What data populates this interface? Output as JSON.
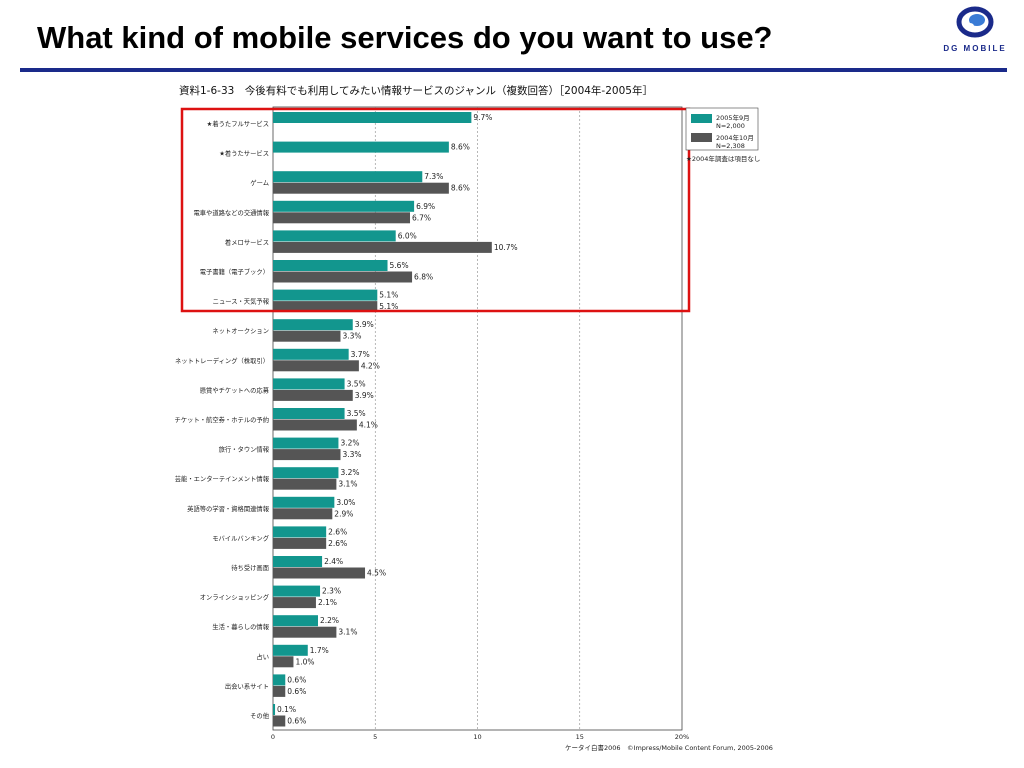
{
  "slide": {
    "title": "What kind of mobile services do you want to use?",
    "logo_text": "DG MOBILE"
  },
  "colors": {
    "series_2005": "#12968e",
    "series_2004": "#555555",
    "highlight_box": "#dd1111",
    "divider": "#1a2a8a"
  },
  "chart_data": {
    "type": "bar",
    "orientation": "horizontal",
    "title": "資料1-6-33　今後有料でも利用してみたい情報サービスのジャンル（複数回答）［2004年-2005年］",
    "categories": [
      "★着うたフルサービス",
      "★着うたサービス",
      "ゲーム",
      "電車や道路などの交通情報",
      "着メロサービス",
      "電子書籍（電子ブック）",
      "ニュース・天気予報",
      "ネットオークション",
      "ネットトレーディング（株取引）",
      "懸賞やチケットへの応募",
      "チケット・航空券・ホテルの予約",
      "旅行・タウン情報",
      "芸能・エンターテインメント情報",
      "英語等の学習・資格関連情報",
      "モバイルバンキング",
      "待ち受け画面",
      "オンラインショッピング",
      "生活・暮らしの情報",
      "占い",
      "出会い系サイト",
      "その他"
    ],
    "series": [
      {
        "name": "2005年9月 N=2,000",
        "values": [
          9.7,
          8.6,
          7.3,
          6.9,
          6.0,
          5.6,
          5.1,
          3.9,
          3.7,
          3.5,
          3.5,
          3.2,
          3.2,
          3.0,
          2.6,
          2.4,
          2.3,
          2.2,
          1.7,
          0.6,
          0.1
        ],
        "labels": [
          "9.7%",
          "8.6%",
          "7.3%",
          "6.9%",
          "6.0%",
          "5.6%",
          "5.1%",
          "3.9%",
          "3.7%",
          "3.5%",
          "3.5%",
          "3.2%",
          "3.2%",
          "3.0%",
          "2.6%",
          "2.4%",
          "2.3%",
          "2.2%",
          "1.7%",
          "0.6%",
          "0.1%"
        ]
      },
      {
        "name": "2004年10月 N=2,308",
        "values": [
          null,
          null,
          8.6,
          6.7,
          10.7,
          6.8,
          5.1,
          3.3,
          4.2,
          3.9,
          4.1,
          3.3,
          3.1,
          2.9,
          2.6,
          4.5,
          2.1,
          3.1,
          1.0,
          0.6,
          0.6
        ],
        "labels": [
          "",
          "",
          "8.6%",
          "6.7%",
          "10.7%",
          "6.8%",
          "5.1%",
          "3.3%",
          "4.2%",
          "3.9%",
          "4.1%",
          "3.3%",
          "3.1%",
          "2.9%",
          "2.6%",
          "4.5%",
          "2.1%",
          "3.1%",
          "1.0%",
          "0.6%",
          "0.6%"
        ]
      }
    ],
    "xlim": [
      0,
      20
    ],
    "x_ticks": [
      "0",
      "5",
      "10",
      "15",
      "20%"
    ],
    "grid": "vertical dashed at 5, 10, 15",
    "legend": {
      "placement": "right",
      "items": [
        {
          "line1": "2005年9月",
          "line2": "N=2,000"
        },
        {
          "line1": "2004年10月",
          "line2": "N=2,308"
        }
      ],
      "note": "★2004年調査は項目なし"
    },
    "highlight": "box around first 7 categories",
    "source": "ケータイ白書2006　©Impress/Mobile Content Forum, 2005-2006"
  }
}
